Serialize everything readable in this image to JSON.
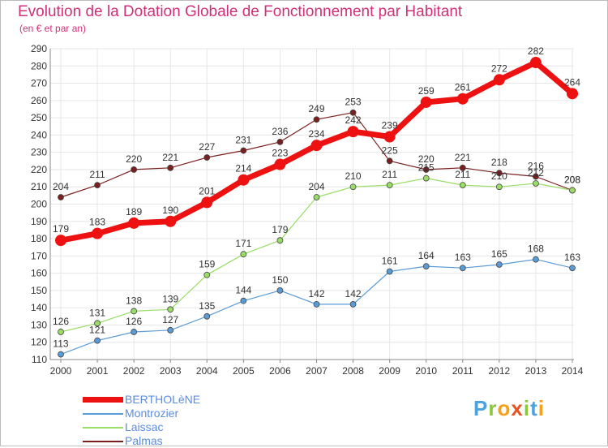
{
  "header": {
    "title": "Evolution de la Dotation Globale de Fonctionnement par Habitant",
    "subtitle": "(en € et par an)"
  },
  "brand": {
    "text": "Proxiti"
  },
  "colors": {
    "BERTHOLeNE": "#ee1111",
    "Montrozier": "#5b9bd5",
    "Laissac": "#99dd66",
    "Palmas": "#7a1f1f",
    "axis_labels": "#333333",
    "grid": "#e6e6e6"
  },
  "chart_data": {
    "type": "line",
    "title": "Evolution de la Dotation Globale de Fonctionnement par Habitant",
    "subtitle": "(en € et par an)",
    "x": [
      2000,
      2001,
      2002,
      2003,
      2004,
      2005,
      2006,
      2007,
      2008,
      2009,
      2010,
      2011,
      2012,
      2013,
      2014
    ],
    "ylim": [
      110,
      290
    ],
    "ytick_step": 10,
    "grid": true,
    "legend_position": "bottom-left",
    "series": [
      {
        "name": "BERTHOLèNE",
        "key": "BERTHOLeNE",
        "values": [
          179,
          183,
          189,
          190,
          201,
          214,
          223,
          234,
          242,
          239,
          259,
          261,
          272,
          282,
          264
        ]
      },
      {
        "name": "Montrozier",
        "key": "Montrozier",
        "values": [
          113,
          121,
          126,
          127,
          135,
          144,
          150,
          142,
          142,
          161,
          164,
          163,
          165,
          168,
          163
        ]
      },
      {
        "name": "Laissac",
        "key": "Laissac",
        "values": [
          126,
          131,
          138,
          139,
          159,
          171,
          179,
          204,
          210,
          211,
          215,
          211,
          210,
          212,
          208
        ]
      },
      {
        "name": "Palmas",
        "key": "Palmas",
        "values": [
          204,
          211,
          220,
          221,
          227,
          231,
          236,
          249,
          253,
          225,
          220,
          221,
          218,
          216,
          208
        ]
      }
    ]
  }
}
